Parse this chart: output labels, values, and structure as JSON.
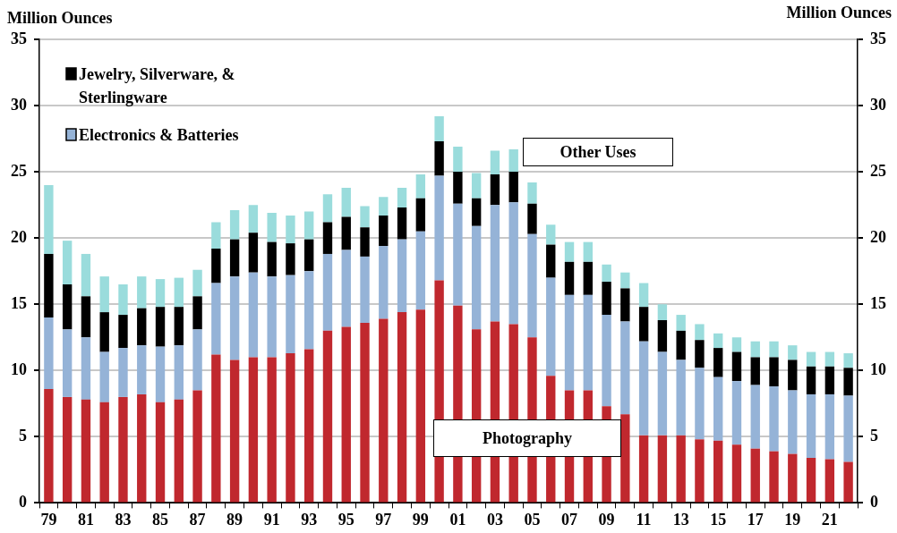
{
  "chart_data": {
    "type": "bar",
    "stacked": true,
    "ylabel": "Million Ounces",
    "y2label": "Million Ounces",
    "categories": [
      "79",
      null,
      "81",
      null,
      "83",
      null,
      "85",
      null,
      "87",
      null,
      "89",
      null,
      "91",
      null,
      "93",
      null,
      "95",
      null,
      "97",
      null,
      "99",
      null,
      "01",
      null,
      "03",
      null,
      "05",
      null,
      "07",
      null,
      "09",
      null,
      "11",
      null,
      "13",
      null,
      "15",
      null,
      "17",
      null,
      "19",
      null,
      "21",
      null
    ],
    "series": [
      {
        "color": "#c0282e",
        "values": [
          8.6,
          8.0,
          7.8,
          7.6,
          8.0,
          8.2,
          7.6,
          7.8,
          8.5,
          11.2,
          10.8,
          11.0,
          11.0,
          11.3,
          11.6,
          13.0,
          13.3,
          13.6,
          13.9,
          14.4,
          14.6,
          16.8,
          14.9,
          13.1,
          13.7,
          13.5,
          12.5,
          9.6,
          8.5,
          8.5,
          7.3,
          6.7,
          5.1,
          5.1,
          5.1,
          4.8,
          4.7,
          4.4,
          4.1,
          3.9,
          3.7,
          3.4,
          3.3,
          3.1
        ]
      },
      {
        "name": "Electronics & Batteries",
        "color": "#95b3d7",
        "values": [
          5.4,
          5.1,
          4.7,
          3.8,
          3.7,
          3.7,
          4.2,
          4.1,
          4.6,
          5.4,
          6.3,
          6.4,
          6.1,
          5.9,
          5.9,
          5.8,
          5.8,
          5.0,
          5.5,
          5.5,
          5.9,
          7.9,
          7.7,
          7.8,
          8.8,
          9.2,
          7.8,
          7.4,
          7.2,
          7.2,
          6.9,
          7.0,
          7.1,
          6.3,
          5.7,
          5.4,
          4.8,
          4.8,
          4.8,
          4.9,
          4.8,
          4.8,
          4.9,
          5.0
        ]
      },
      {
        "name": "Jewelry, Silverware, & Sterlingware",
        "color": "#000000",
        "values": [
          4.8,
          3.4,
          3.1,
          3.0,
          2.5,
          2.8,
          3.0,
          2.9,
          2.5,
          2.6,
          2.8,
          3.0,
          2.6,
          2.4,
          2.4,
          2.4,
          2.5,
          2.2,
          2.3,
          2.4,
          2.5,
          2.6,
          2.4,
          2.1,
          2.3,
          2.3,
          2.3,
          2.5,
          2.5,
          2.5,
          2.5,
          2.5,
          2.6,
          2.4,
          2.2,
          2.1,
          2.2,
          2.2,
          2.1,
          2.2,
          2.3,
          2.1,
          2.1,
          2.1
        ]
      },
      {
        "color": "#9adcdc",
        "values": [
          5.2,
          3.3,
          3.2,
          2.7,
          2.3,
          2.4,
          2.1,
          2.2,
          2.0,
          2.0,
          2.2,
          2.1,
          2.2,
          2.1,
          2.1,
          2.1,
          2.2,
          1.6,
          1.4,
          1.5,
          1.8,
          1.9,
          1.9,
          1.9,
          1.8,
          1.7,
          1.6,
          1.5,
          1.5,
          1.5,
          1.3,
          1.2,
          1.8,
          1.2,
          1.2,
          1.2,
          1.1,
          1.1,
          1.2,
          1.2,
          1.1,
          1.1,
          1.1,
          1.1
        ]
      }
    ],
    "ylim": [
      0,
      35
    ],
    "yticks": [
      0,
      5,
      10,
      15,
      20,
      25,
      30,
      35
    ],
    "y2lim": [
      0,
      35
    ],
    "y2ticks": [
      0,
      5,
      10,
      15,
      20,
      25,
      30,
      35
    ],
    "grid": "y",
    "legend": "top left",
    "annotations": [
      "Other Uses",
      "Photography"
    ]
  }
}
